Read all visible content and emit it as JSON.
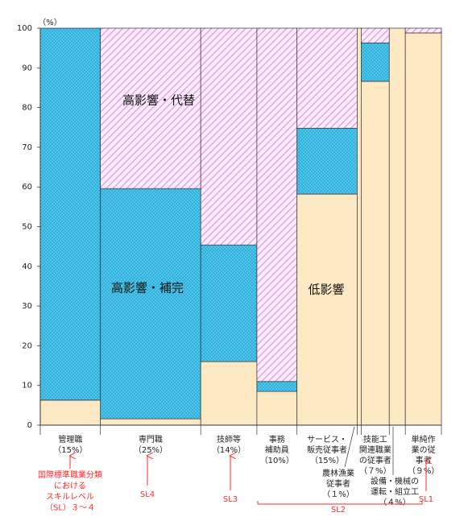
{
  "chart_data": {
    "type": "marimekko",
    "y_unit": "（%）",
    "ylim": [
      0,
      100
    ],
    "yticks": [
      0,
      10,
      20,
      30,
      40,
      50,
      60,
      70,
      80,
      90,
      100
    ],
    "categories": [
      [
        "管理職"
      ],
      [
        "専門職"
      ],
      [
        "技師等"
      ],
      [
        "事務",
        "補助員"
      ],
      [
        "サービス・",
        "販売従事者"
      ],
      [
        "農林漁業",
        "従事者"
      ],
      [
        "技能工",
        "関連職業",
        "の従事者"
      ],
      [
        "設備・機械の",
        "運転・組立工"
      ],
      [
        "単純作",
        "業の従",
        "事者"
      ]
    ],
    "widths": [
      15,
      25,
      14,
      10,
      15,
      1,
      7,
      4,
      9
    ],
    "width_labels": [
      "（15%）",
      "（25%）",
      "（14%）",
      "（10%）",
      "（15%）",
      "（１%）",
      "（７%）",
      "（４%）",
      "（９%）"
    ],
    "series": [
      {
        "name": "低影響",
        "color": "#fde9c3",
        "values": [
          6.3,
          1.6,
          16.0,
          8.5,
          58.2,
          100,
          86.6,
          100,
          98.8
        ]
      },
      {
        "name": "高影響・補完",
        "color": "#2cb2de",
        "values": [
          93.7,
          58.0,
          29.4,
          2.5,
          16.6,
          0,
          9.7,
          0,
          0
        ]
      },
      {
        "name": "高影響・代替",
        "color": "#e88ee8",
        "values": [
          0,
          40.4,
          54.6,
          89.0,
          25.2,
          0,
          3.7,
          0,
          1.2
        ]
      }
    ],
    "annotations": [
      [
        "国際標準職業分類",
        "における",
        "スキルレベル",
        "（SL）３〜４"
      ],
      [
        "SL4"
      ],
      [
        "SL3"
      ],
      [
        "SL2"
      ],
      [
        "SL1"
      ]
    ]
  }
}
